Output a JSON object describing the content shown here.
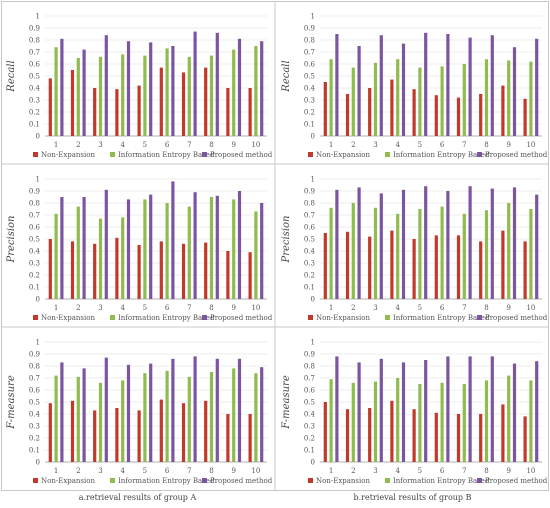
{
  "legend_labels": [
    "Non-Expansion",
    "Information Entropy Based",
    "Proposed method"
  ],
  "colors": {
    "non_expansion": "#c0392b",
    "info_entropy": "#8fbc4f",
    "proposed": "#7b55a0",
    "axis": "#999999",
    "grid": "#e6e6e6",
    "border": "#c8c8c8"
  },
  "captions": {
    "group_a": "a.retrieval results of group A",
    "group_b": "b.retrieval results of group B"
  },
  "chart_data": [
    {
      "type": "bar",
      "group": "A",
      "ylabel": "Recall",
      "ylim": [
        0,
        1
      ],
      "yticks": [
        "0",
        "0.1",
        "0.2",
        "0.3",
        "0.4",
        "0.5",
        "0.6",
        "0.7",
        "0.8",
        "0.9",
        "1"
      ],
      "categories": [
        "1",
        "2",
        "3",
        "4",
        "5",
        "6",
        "7",
        "8",
        "9",
        "10"
      ],
      "legend": "bottom",
      "series": [
        {
          "name": "Non-Expansion",
          "values": [
            0.48,
            0.55,
            0.4,
            0.39,
            0.42,
            0.57,
            0.53,
            0.57,
            0.4,
            0.4
          ]
        },
        {
          "name": "Information Entropy Based",
          "values": [
            0.74,
            0.65,
            0.66,
            0.68,
            0.67,
            0.73,
            0.66,
            0.67,
            0.72,
            0.75
          ]
        },
        {
          "name": "Proposed method",
          "values": [
            0.81,
            0.72,
            0.84,
            0.79,
            0.78,
            0.75,
            0.87,
            0.86,
            0.81,
            0.79
          ]
        }
      ]
    },
    {
      "type": "bar",
      "group": "B",
      "ylabel": "Recall",
      "ylim": [
        0,
        1
      ],
      "yticks": [
        "0",
        "0.1",
        "0.2",
        "0.3",
        "0.4",
        "0.5",
        "0.6",
        "0.7",
        "0.8",
        "0.9",
        "1"
      ],
      "categories": [
        "1",
        "2",
        "3",
        "4",
        "5",
        "6",
        "7",
        "8",
        "9",
        "10"
      ],
      "legend": "bottom",
      "series": [
        {
          "name": "Non-Expansion",
          "values": [
            0.45,
            0.35,
            0.4,
            0.47,
            0.39,
            0.34,
            0.32,
            0.35,
            0.42,
            0.31
          ]
        },
        {
          "name": "Information Entropy Based",
          "values": [
            0.64,
            0.57,
            0.61,
            0.64,
            0.57,
            0.58,
            0.6,
            0.64,
            0.63,
            0.62
          ]
        },
        {
          "name": "Proposed method",
          "values": [
            0.85,
            0.75,
            0.84,
            0.77,
            0.86,
            0.85,
            0.82,
            0.84,
            0.74,
            0.81
          ]
        }
      ]
    },
    {
      "type": "bar",
      "group": "A",
      "ylabel": "Precision",
      "ylim": [
        0,
        1
      ],
      "yticks": [
        "0",
        "0.1",
        "0.2",
        "0.3",
        "0.4",
        "0.5",
        "0.6",
        "0.7",
        "0.8",
        "0.9",
        "1"
      ],
      "categories": [
        "1",
        "2",
        "3",
        "4",
        "5",
        "6",
        "7",
        "8",
        "9",
        "10"
      ],
      "legend": "bottom",
      "series": [
        {
          "name": "Non-Expansion",
          "values": [
            0.5,
            0.48,
            0.46,
            0.51,
            0.45,
            0.48,
            0.46,
            0.47,
            0.4,
            0.39
          ]
        },
        {
          "name": "Information Entropy Based",
          "values": [
            0.71,
            0.77,
            0.67,
            0.68,
            0.83,
            0.8,
            0.77,
            0.85,
            0.83,
            0.73
          ]
        },
        {
          "name": "Proposed method",
          "values": [
            0.85,
            0.85,
            0.91,
            0.83,
            0.87,
            0.98,
            0.89,
            0.86,
            0.9,
            0.8
          ]
        }
      ]
    },
    {
      "type": "bar",
      "group": "B",
      "ylabel": "Precision",
      "ylim": [
        0,
        1
      ],
      "yticks": [
        "0",
        "0.1",
        "0.2",
        "0.3",
        "0.4",
        "0.5",
        "0.6",
        "0.7",
        "0.8",
        "0.9",
        "1"
      ],
      "categories": [
        "1",
        "2",
        "3",
        "4",
        "5",
        "6",
        "7",
        "8",
        "9",
        "10"
      ],
      "legend": "bottom",
      "series": [
        {
          "name": "Non-Expansion",
          "values": [
            0.55,
            0.56,
            0.52,
            0.57,
            0.5,
            0.53,
            0.53,
            0.48,
            0.57,
            0.48
          ]
        },
        {
          "name": "Information Entropy Based",
          "values": [
            0.76,
            0.8,
            0.76,
            0.71,
            0.75,
            0.77,
            0.71,
            0.74,
            0.8,
            0.75
          ]
        },
        {
          "name": "Proposed method",
          "values": [
            0.91,
            0.93,
            0.88,
            0.91,
            0.94,
            0.9,
            0.94,
            0.92,
            0.93,
            0.87
          ]
        }
      ]
    },
    {
      "type": "bar",
      "group": "A",
      "ylabel": "F-measure",
      "ylim": [
        0,
        1
      ],
      "yticks": [
        "0",
        "0.1",
        "0.2",
        "0.3",
        "0.4",
        "0.5",
        "0.6",
        "0.7",
        "0.8",
        "0.9",
        "1"
      ],
      "categories": [
        "1",
        "2",
        "3",
        "4",
        "5",
        "6",
        "7",
        "8",
        "9",
        "10"
      ],
      "legend": "bottom",
      "series": [
        {
          "name": "Non-Expansion",
          "values": [
            0.49,
            0.51,
            0.43,
            0.45,
            0.43,
            0.52,
            0.49,
            0.51,
            0.4,
            0.4
          ]
        },
        {
          "name": "Information Entropy Based",
          "values": [
            0.72,
            0.71,
            0.66,
            0.68,
            0.74,
            0.76,
            0.71,
            0.75,
            0.78,
            0.74
          ]
        },
        {
          "name": "Proposed method",
          "values": [
            0.83,
            0.78,
            0.87,
            0.81,
            0.82,
            0.86,
            0.88,
            0.86,
            0.86,
            0.79
          ]
        }
      ]
    },
    {
      "type": "bar",
      "group": "B",
      "ylabel": "F-measure",
      "ylim": [
        0,
        1
      ],
      "yticks": [
        "0",
        "0.1",
        "0.2",
        "0.3",
        "0.4",
        "0.5",
        "0.6",
        "0.7",
        "0.8",
        "0.9",
        "1"
      ],
      "categories": [
        "1",
        "2",
        "3",
        "4",
        "5",
        "6",
        "7",
        "8",
        "9",
        "10"
      ],
      "legend": "bottom",
      "series": [
        {
          "name": "Non-Expansion",
          "values": [
            0.5,
            0.44,
            0.45,
            0.51,
            0.44,
            0.41,
            0.4,
            0.4,
            0.48,
            0.38
          ]
        },
        {
          "name": "Information Entropy Based",
          "values": [
            0.69,
            0.66,
            0.67,
            0.7,
            0.65,
            0.66,
            0.65,
            0.68,
            0.72,
            0.68
          ]
        },
        {
          "name": "Proposed method",
          "values": [
            0.88,
            0.83,
            0.86,
            0.83,
            0.85,
            0.88,
            0.88,
            0.88,
            0.82,
            0.84
          ]
        }
      ]
    }
  ]
}
